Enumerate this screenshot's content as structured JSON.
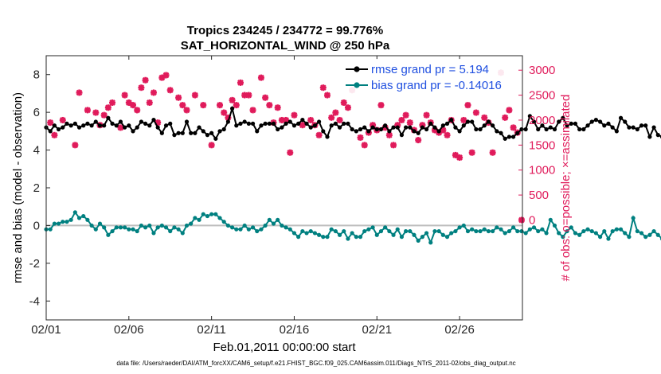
{
  "chart_data": {
    "type": "line",
    "title": "Tropics 234245 / 234772 = 99.776%",
    "subtitle": "SAT_HORIZONTAL_WIND @ 250 hPa",
    "xlabel": "Feb.01,2011 00:00:00 start",
    "ylabel_left": "rmse and bias (model - observation)",
    "ylabel_right": "# of obs: o=possible; ×=assimilated",
    "footnote": "data file: /Users/raeder/DAI/ATM_forcXX/CAM6_setup/f.e21.FHIST_BGC.f09_025.CAM6assim.011/Diags_NTrS_2011-02/obs_diag_output.nc",
    "xlim": [
      0,
      28.8
    ],
    "ylim_left": [
      -5,
      9
    ],
    "ylim_right": [
      -2000,
      3290
    ],
    "x_ticks": [
      0,
      5,
      10,
      15,
      20,
      25
    ],
    "x_tick_labels": [
      "02/01",
      "02/06",
      "02/11",
      "02/16",
      "02/21",
      "02/26"
    ],
    "y_ticks_left": [
      -4,
      -2,
      0,
      2,
      4,
      6,
      8
    ],
    "y_tick_labels_left": [
      "-4",
      "-2",
      "0",
      "2",
      "4",
      "6",
      "8"
    ],
    "y_ticks_right": [
      0,
      500,
      1000,
      1500,
      2000,
      2500,
      3000
    ],
    "y_tick_labels_right": [
      "0",
      "500",
      "1000",
      "1500",
      "2000",
      "2500",
      "3000"
    ],
    "x_step": 0.25,
    "series": [
      {
        "name": "rmse",
        "legend": "rmse grand pr = 5.194",
        "color": "#000000",
        "axis": "left",
        "values": [
          5.2,
          5.0,
          5.3,
          5.1,
          5.2,
          5.4,
          5.3,
          5.4,
          5.2,
          5.3,
          5.4,
          5.3,
          5.5,
          5.3,
          5.3,
          5.7,
          5.4,
          5.3,
          5.5,
          5.2,
          5.3,
          5.0,
          5.2,
          5.5,
          5.4,
          5.3,
          5.6,
          5.2,
          4.9,
          5.3,
          5.4,
          4.8,
          4.9,
          4.9,
          5.5,
          4.9,
          4.9,
          5.2,
          5.0,
          4.8,
          4.9,
          4.6,
          5.0,
          5.1,
          5.5,
          6.2,
          5.3,
          5.4,
          5.5,
          5.4,
          5.4,
          5.0,
          5.3,
          5.4,
          5.4,
          5.4,
          5.1,
          5.2,
          5.4,
          5.5,
          5.3,
          5.4,
          5.6,
          5.4,
          5.2,
          5.3,
          5.5,
          5.0,
          4.7,
          5.3,
          5.4,
          5.2,
          5.4,
          5.4,
          5.1,
          5.0,
          5.1,
          5.2,
          5.0,
          5.2,
          5.1,
          5.1,
          5.3,
          5.0,
          5.2,
          5.2,
          4.8,
          5.2,
          5.2,
          5.0,
          4.9,
          5.2,
          5.1,
          5.4,
          5.2,
          5.0,
          5.3,
          5.4,
          5.6,
          5.2,
          5.0,
          5.3,
          5.5,
          5.5,
          5.1,
          5.1,
          5.3,
          5.5,
          5.3,
          5.0,
          4.9,
          4.6,
          4.7,
          4.7,
          4.9,
          5.1,
          5.1,
          5.8,
          5.5,
          5.1,
          5.3,
          5.1,
          5.2,
          5.1,
          5.5,
          5.7,
          5.3,
          5.4,
          5.4,
          5.1,
          5.1,
          5.3,
          5.5,
          5.6,
          5.5,
          5.3,
          5.4,
          5.2,
          5.0,
          5.7,
          5.5,
          5.2,
          5.2,
          5.1,
          5.3,
          5.3,
          4.7,
          5.2,
          4.8,
          4.7,
          4.8,
          5.0,
          5.0,
          5.3,
          6.0
        ],
        "labels": [],
        "scatter": []
      },
      {
        "name": "bias",
        "legend": "bias grand pr = -0.14016",
        "color": "#008080",
        "axis": "left",
        "values": [
          -0.2,
          -0.2,
          0.1,
          0.1,
          0.2,
          0.2,
          0.3,
          0.7,
          0.4,
          0.5,
          0.3,
          0.0,
          -0.2,
          0.1,
          -0.1,
          -0.5,
          -0.3,
          -0.1,
          -0.1,
          -0.1,
          -0.2,
          -0.2,
          -0.3,
          0.0,
          -0.1,
          0.0,
          -0.4,
          -0.1,
          0.0,
          -0.1,
          -0.3,
          -0.1,
          -0.2,
          -0.4,
          0.0,
          0.1,
          0.4,
          0.3,
          0.6,
          0.5,
          0.6,
          0.6,
          0.4,
          0.2,
          0.0,
          -0.1,
          -0.2,
          -0.2,
          0.0,
          -0.2,
          -0.1,
          -0.3,
          -0.2,
          0.0,
          0.3,
          0.1,
          0.3,
          0.0,
          -0.1,
          -0.2,
          -0.4,
          -0.6,
          -0.3,
          -0.4,
          -0.3,
          -0.4,
          -0.5,
          -0.6,
          -0.6,
          -0.2,
          -0.3,
          -0.5,
          -0.3,
          -0.7,
          -0.4,
          -0.6,
          -0.6,
          -0.3,
          -0.2,
          -0.1,
          -0.5,
          -0.3,
          -0.1,
          -0.3,
          -0.5,
          -0.2,
          -0.6,
          -0.3,
          -0.3,
          -0.5,
          -0.8,
          -0.6,
          -0.4,
          -0.9,
          -0.3,
          -0.3,
          -0.5,
          -0.6,
          -0.4,
          -0.3,
          -0.1,
          0.0,
          -0.3,
          -0.2,
          -0.3,
          -0.3,
          -0.2,
          -0.3,
          -0.3,
          -0.1,
          -0.2,
          -0.4,
          -0.3,
          -0.1,
          -0.3,
          -0.3,
          -0.4,
          -0.2,
          -0.1,
          -0.3,
          -0.2,
          -0.4,
          0.3,
          0.0,
          -0.4,
          -0.6,
          -0.3,
          -0.1,
          -0.4,
          -0.5,
          -0.3,
          -0.2,
          -0.3,
          -0.4,
          -0.6,
          -0.3,
          -0.7,
          -0.3,
          -0.2,
          -0.2,
          -0.4,
          -0.6,
          0.4,
          -0.3,
          -0.4,
          -0.6,
          -0.5,
          -0.3,
          -0.5,
          -0.7,
          -0.5,
          -0.3,
          -0.4,
          -0.5,
          -0.2,
          0.0,
          0.3,
          0.2
        ],
        "labels": [],
        "scatter": []
      },
      {
        "name": "obs assimilated",
        "legend": "",
        "color": "#e01b5b",
        "axis": "right",
        "values": [],
        "labels": [],
        "scatter": [
          {
            "x": 0.25,
            "y": 1950
          },
          {
            "x": 0.5,
            "y": 1700
          },
          {
            "x": 1.0,
            "y": 2000
          },
          {
            "x": 1.75,
            "y": 1500
          },
          {
            "x": 2.0,
            "y": 2550
          },
          {
            "x": 2.5,
            "y": 2200
          },
          {
            "x": 3.0,
            "y": 2150
          },
          {
            "x": 3.25,
            "y": 1900
          },
          {
            "x": 3.5,
            "y": 2100
          },
          {
            "x": 3.75,
            "y": 2250
          },
          {
            "x": 4.0,
            "y": 2350
          },
          {
            "x": 4.5,
            "y": 1850
          },
          {
            "x": 4.75,
            "y": 2500
          },
          {
            "x": 5.0,
            "y": 2350
          },
          {
            "x": 5.25,
            "y": 2300
          },
          {
            "x": 5.5,
            "y": 2200
          },
          {
            "x": 5.75,
            "y": 2650
          },
          {
            "x": 6.0,
            "y": 2800
          },
          {
            "x": 6.25,
            "y": 2350
          },
          {
            "x": 6.5,
            "y": 2550
          },
          {
            "x": 6.75,
            "y": 1950
          },
          {
            "x": 7.0,
            "y": 2850
          },
          {
            "x": 7.25,
            "y": 2900
          },
          {
            "x": 7.5,
            "y": 2600
          },
          {
            "x": 8.0,
            "y": 2450
          },
          {
            "x": 8.25,
            "y": 2300
          },
          {
            "x": 8.5,
            "y": 2200
          },
          {
            "x": 9.0,
            "y": 2500
          },
          {
            "x": 9.5,
            "y": 2300
          },
          {
            "x": 10.0,
            "y": 1500
          },
          {
            "x": 10.5,
            "y": 2300
          },
          {
            "x": 10.75,
            "y": 2150
          },
          {
            "x": 11.0,
            "y": 2050
          },
          {
            "x": 11.25,
            "y": 2400
          },
          {
            "x": 11.5,
            "y": 2300
          },
          {
            "x": 11.75,
            "y": 2750
          },
          {
            "x": 12.0,
            "y": 2500
          },
          {
            "x": 12.25,
            "y": 2500
          },
          {
            "x": 12.5,
            "y": 2200
          },
          {
            "x": 13.0,
            "y": 2850
          },
          {
            "x": 13.25,
            "y": 2450
          },
          {
            "x": 13.5,
            "y": 2300
          },
          {
            "x": 13.75,
            "y": 1950
          },
          {
            "x": 14.0,
            "y": 2250
          },
          {
            "x": 14.25,
            "y": 2000
          },
          {
            "x": 14.5,
            "y": 2000
          },
          {
            "x": 14.75,
            "y": 1350
          },
          {
            "x": 15.0,
            "y": 2100
          },
          {
            "x": 15.5,
            "y": 1900
          },
          {
            "x": 16.0,
            "y": 2000
          },
          {
            "x": 16.25,
            "y": 1900
          },
          {
            "x": 16.5,
            "y": 1700
          },
          {
            "x": 16.75,
            "y": 2650
          },
          {
            "x": 17.0,
            "y": 2500
          },
          {
            "x": 17.25,
            "y": 2050
          },
          {
            "x": 17.5,
            "y": 2150
          },
          {
            "x": 17.75,
            "y": 2000
          },
          {
            "x": 18.0,
            "y": 2350
          },
          {
            "x": 18.25,
            "y": 2250
          },
          {
            "x": 18.5,
            "y": 2600
          },
          {
            "x": 19.0,
            "y": 1650
          },
          {
            "x": 19.25,
            "y": 1500
          },
          {
            "x": 19.5,
            "y": 1750
          },
          {
            "x": 19.75,
            "y": 1900
          },
          {
            "x": 20.0,
            "y": 1800
          },
          {
            "x": 20.25,
            "y": 2300
          },
          {
            "x": 20.5,
            "y": 1850
          },
          {
            "x": 20.75,
            "y": 1700
          },
          {
            "x": 21.0,
            "y": 1500
          },
          {
            "x": 21.25,
            "y": 1900
          },
          {
            "x": 21.5,
            "y": 2000
          },
          {
            "x": 21.75,
            "y": 2100
          },
          {
            "x": 22.0,
            "y": 1950
          },
          {
            "x": 22.25,
            "y": 1800
          },
          {
            "x": 22.5,
            "y": 1600
          },
          {
            "x": 22.75,
            "y": 1900
          },
          {
            "x": 23.0,
            "y": 2100
          },
          {
            "x": 23.25,
            "y": 1950
          },
          {
            "x": 23.5,
            "y": 1800
          },
          {
            "x": 23.75,
            "y": 1750
          },
          {
            "x": 24.0,
            "y": 1800
          },
          {
            "x": 24.25,
            "y": 1700
          },
          {
            "x": 24.5,
            "y": 2000
          },
          {
            "x": 24.75,
            "y": 1300
          },
          {
            "x": 25.0,
            "y": 1250
          },
          {
            "x": 25.25,
            "y": 2000
          },
          {
            "x": 25.5,
            "y": 2300
          },
          {
            "x": 25.75,
            "y": 1350
          },
          {
            "x": 26.0,
            "y": 2150
          },
          {
            "x": 26.5,
            "y": 2050
          },
          {
            "x": 26.75,
            "y": 1950
          },
          {
            "x": 27.0,
            "y": 1350
          },
          {
            "x": 27.5,
            "y": 2950
          },
          {
            "x": 27.75,
            "y": 2050
          },
          {
            "x": 28.0,
            "y": 2200
          },
          {
            "x": 28.25,
            "y": 1850
          },
          {
            "x": 28.5,
            "y": 1750
          },
          {
            "x": 28.75,
            "y": 0
          }
        ]
      }
    ]
  }
}
